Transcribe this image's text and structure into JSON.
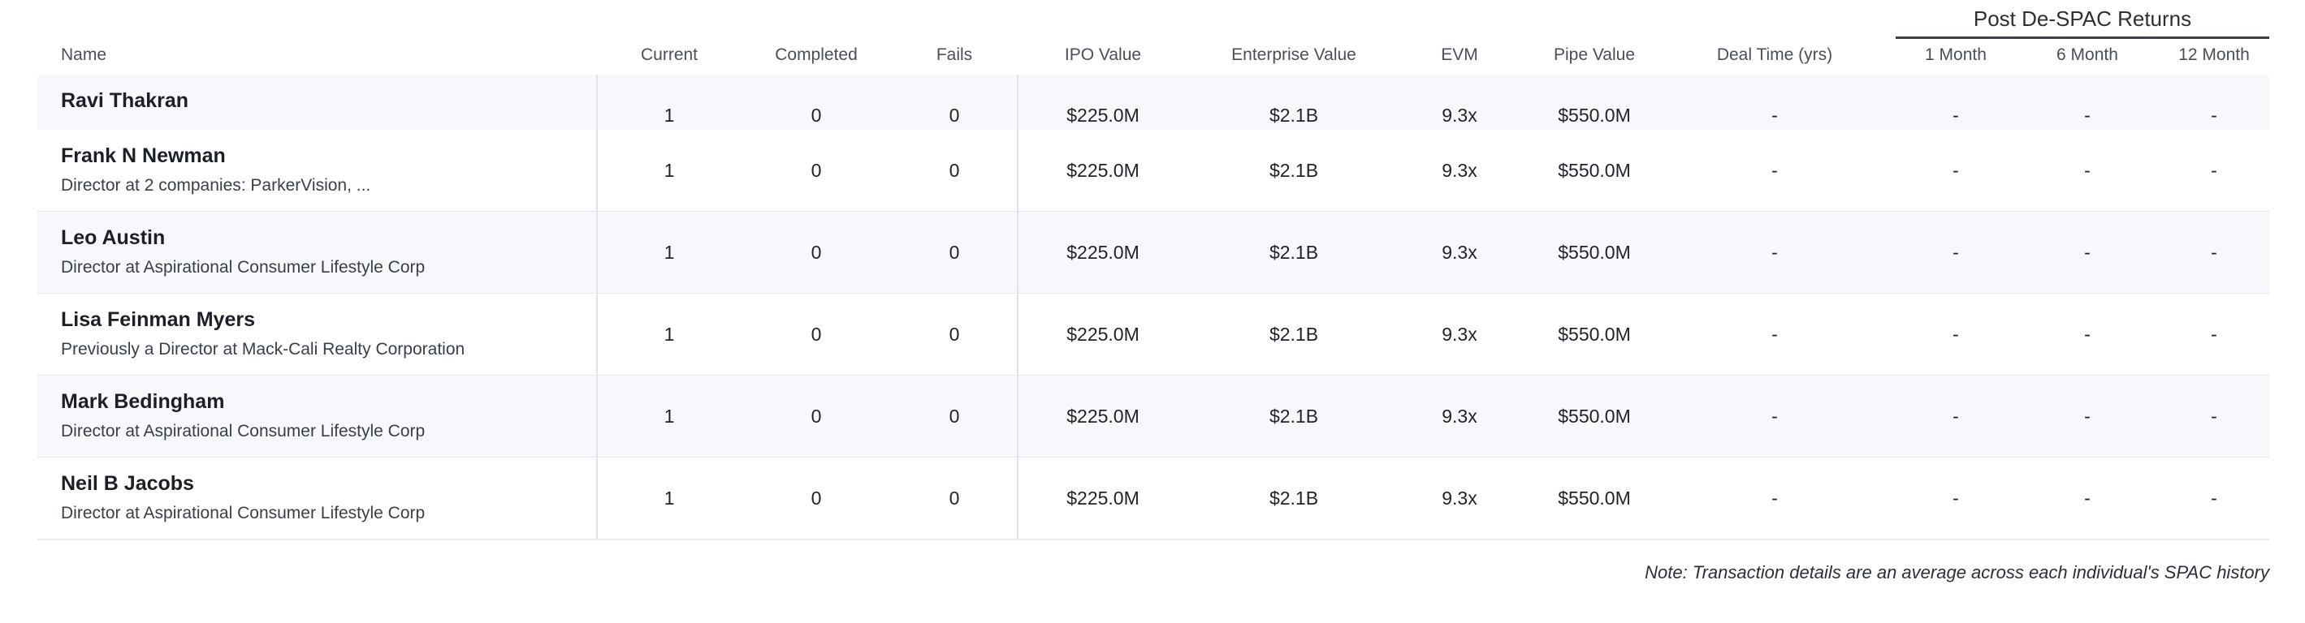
{
  "group_header": {
    "title": "Post De-SPAC Returns"
  },
  "columns": {
    "name": "Name",
    "current": "Current",
    "completed": "Completed",
    "fails": "Fails",
    "ipo_value": "IPO Value",
    "enterprise_value": "Enterprise Value",
    "evm": "EVM",
    "pipe_value": "Pipe Value",
    "deal_time": "Deal Time (yrs)",
    "one_month": "1 Month",
    "six_month": "6 Month",
    "twelve_month": "12 Month"
  },
  "rows": [
    {
      "name": "Ravi Thakran",
      "subtitle": "",
      "current": "1",
      "completed": "0",
      "fails": "0",
      "ipo_value": "$225.0M",
      "enterprise_value": "$2.1B",
      "evm": "9.3x",
      "pipe_value": "$550.0M",
      "deal_time": "-",
      "one_month": "-",
      "six_month": "-",
      "twelve_month": "-"
    },
    {
      "name": "Frank N Newman",
      "subtitle": "Director at 2 companies: ParkerVision, ...",
      "current": "1",
      "completed": "0",
      "fails": "0",
      "ipo_value": "$225.0M",
      "enterprise_value": "$2.1B",
      "evm": "9.3x",
      "pipe_value": "$550.0M",
      "deal_time": "-",
      "one_month": "-",
      "six_month": "-",
      "twelve_month": "-"
    },
    {
      "name": "Leo Austin",
      "subtitle": "Director at Aspirational Consumer Lifestyle Corp",
      "current": "1",
      "completed": "0",
      "fails": "0",
      "ipo_value": "$225.0M",
      "enterprise_value": "$2.1B",
      "evm": "9.3x",
      "pipe_value": "$550.0M",
      "deal_time": "-",
      "one_month": "-",
      "six_month": "-",
      "twelve_month": "-"
    },
    {
      "name": "Lisa Feinman Myers",
      "subtitle": "Previously a Director at Mack-Cali Realty Corporation",
      "current": "1",
      "completed": "0",
      "fails": "0",
      "ipo_value": "$225.0M",
      "enterprise_value": "$2.1B",
      "evm": "9.3x",
      "pipe_value": "$550.0M",
      "deal_time": "-",
      "one_month": "-",
      "six_month": "-",
      "twelve_month": "-"
    },
    {
      "name": "Mark Bedingham",
      "subtitle": "Director at Aspirational Consumer Lifestyle Corp",
      "current": "1",
      "completed": "0",
      "fails": "0",
      "ipo_value": "$225.0M",
      "enterprise_value": "$2.1B",
      "evm": "9.3x",
      "pipe_value": "$550.0M",
      "deal_time": "-",
      "one_month": "-",
      "six_month": "-",
      "twelve_month": "-"
    },
    {
      "name": "Neil B Jacobs",
      "subtitle": "Director at Aspirational Consumer Lifestyle Corp",
      "current": "1",
      "completed": "0",
      "fails": "0",
      "ipo_value": "$225.0M",
      "enterprise_value": "$2.1B",
      "evm": "9.3x",
      "pipe_value": "$550.0M",
      "deal_time": "-",
      "one_month": "-",
      "six_month": "-",
      "twelve_month": "-"
    }
  ],
  "note": "Note: Transaction details are an average across each individual's SPAC history"
}
